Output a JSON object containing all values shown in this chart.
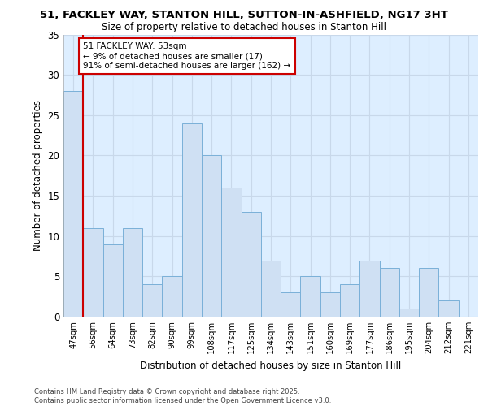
{
  "title1": "51, FACKLEY WAY, STANTON HILL, SUTTON-IN-ASHFIELD, NG17 3HT",
  "title2": "Size of property relative to detached houses in Stanton Hill",
  "xlabel": "Distribution of detached houses by size in Stanton Hill",
  "ylabel": "Number of detached properties",
  "categories": [
    "47sqm",
    "56sqm",
    "64sqm",
    "73sqm",
    "82sqm",
    "90sqm",
    "99sqm",
    "108sqm",
    "117sqm",
    "125sqm",
    "134sqm",
    "143sqm",
    "151sqm",
    "160sqm",
    "169sqm",
    "177sqm",
    "186sqm",
    "195sqm",
    "204sqm",
    "212sqm",
    "221sqm"
  ],
  "values": [
    28,
    11,
    9,
    11,
    4,
    5,
    24,
    20,
    16,
    13,
    7,
    3,
    5,
    3,
    4,
    7,
    6,
    1,
    6,
    2,
    0
  ],
  "bar_color": "#cfe0f3",
  "bar_edge_color": "#7ab0d8",
  "bg_color": "#ddeeff",
  "grid_color": "#c8d8ea",
  "vline_x_idx": 1,
  "vline_color": "#cc0000",
  "annotation_title": "51 FACKLEY WAY: 53sqm",
  "annotation_line1": "← 9% of detached houses are smaller (17)",
  "annotation_line2": "91% of semi-detached houses are larger (162) →",
  "annotation_box_color": "#ffffff",
  "annotation_border_color": "#cc0000",
  "footer1": "Contains HM Land Registry data © Crown copyright and database right 2025.",
  "footer2": "Contains public sector information licensed under the Open Government Licence v3.0.",
  "ylim": [
    0,
    35
  ],
  "yticks": [
    0,
    5,
    10,
    15,
    20,
    25,
    30,
    35
  ]
}
